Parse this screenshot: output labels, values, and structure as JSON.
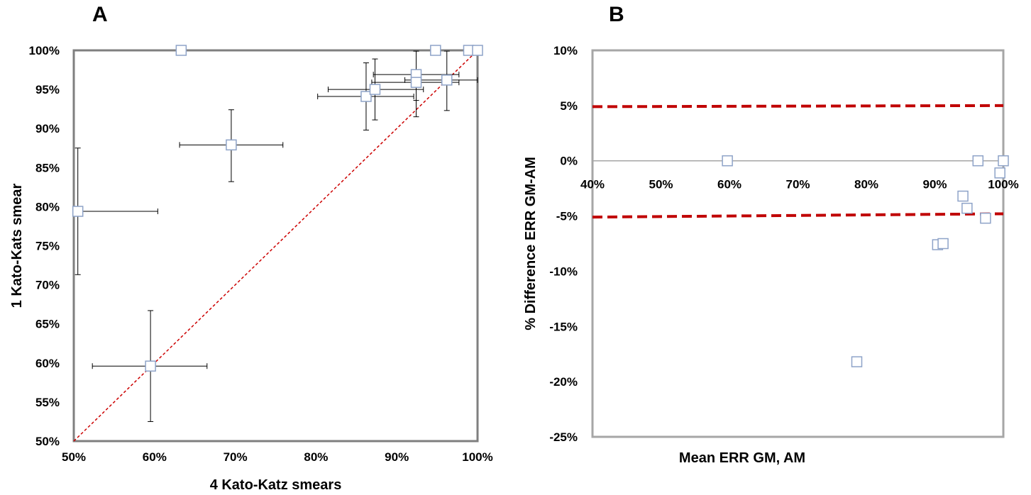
{
  "figure": {
    "panel_a_letter": "A",
    "panel_b_letter": "B"
  },
  "chart_data": [
    {
      "type": "scatter",
      "panel": "A",
      "xlabel": "4 Kato-Katz smears",
      "ylabel": "1 Kato-Kats smear",
      "xlim": [
        50,
        100
      ],
      "ylim": [
        50,
        100
      ],
      "x_ticks": [
        50,
        60,
        70,
        80,
        90,
        100
      ],
      "x_tick_labels": [
        "50%",
        "60%",
        "70%",
        "80%",
        "90%",
        "100%"
      ],
      "y_ticks": [
        50,
        55,
        60,
        65,
        70,
        75,
        80,
        85,
        90,
        95,
        100
      ],
      "y_tick_labels": [
        "50%",
        "55%",
        "60%",
        "65%",
        "70%",
        "75%",
        "80%",
        "85%",
        "90%",
        "95%",
        "100%"
      ],
      "grid": false,
      "reference_line": {
        "from": [
          50,
          50
        ],
        "to": [
          100,
          100
        ],
        "style": "dashed",
        "color": "#cc0000"
      },
      "marker_color": "#8ea3c8",
      "points": [
        {
          "x": 59.5,
          "y": 59.6,
          "xerr": [
            52.3,
            66.5
          ],
          "yerr": [
            52.5,
            66.7
          ]
        },
        {
          "x": 50.5,
          "y": 79.4,
          "xerr": [
            50.0,
            60.4
          ],
          "yerr": [
            71.3,
            87.5
          ]
        },
        {
          "x": 69.5,
          "y": 87.9,
          "xerr": [
            63.1,
            75.9
          ],
          "yerr": [
            83.2,
            92.4
          ]
        },
        {
          "x": 63.3,
          "y": 100
        },
        {
          "x": 86.2,
          "y": 94.1,
          "xerr": [
            80.2,
            92.1
          ],
          "yerr": [
            89.8,
            98.4
          ]
        },
        {
          "x": 87.3,
          "y": 95.0,
          "xerr": [
            81.5,
            93.3
          ],
          "yerr": [
            91.1,
            98.9
          ]
        },
        {
          "x": 92.4,
          "y": 96.9,
          "xerr": [
            87.1,
            97.7
          ],
          "yerr": [
            93.6,
            99.9
          ]
        },
        {
          "x": 92.4,
          "y": 95.9,
          "xerr": [
            86.9,
            97.7
          ],
          "yerr": [
            91.5,
            99.9
          ]
        },
        {
          "x": 96.2,
          "y": 96.2,
          "xerr": [
            91.0,
            100
          ],
          "yerr": [
            92.3,
            99.9
          ]
        },
        {
          "x": 94.8,
          "y": 100
        },
        {
          "x": 98.9,
          "y": 100
        },
        {
          "x": 100,
          "y": 100
        }
      ]
    },
    {
      "type": "scatter",
      "panel": "B",
      "xlabel": "Mean ERR GM, AM",
      "ylabel": "% Difference ERR GM-AM",
      "xlim": [
        40,
        100
      ],
      "ylim": [
        -25,
        10
      ],
      "x_ticks": [
        40,
        50,
        60,
        70,
        80,
        90,
        100
      ],
      "x_tick_labels": [
        "40%",
        "50%",
        "60%",
        "70%",
        "80%",
        "90%",
        "100%"
      ],
      "y_ticks": [
        10,
        5,
        0,
        -5,
        -10,
        -15,
        -20,
        -25
      ],
      "y_tick_labels": [
        "10%",
        "5%",
        "0%",
        "-5%",
        "-10%",
        "-15%",
        "-20%",
        "-25%"
      ],
      "grid": false,
      "limit_lines": [
        {
          "from": [
            40,
            4.9
          ],
          "to": [
            100,
            5.0
          ],
          "style": "dashed",
          "color": "#c00000"
        },
        {
          "from": [
            40,
            -5.1
          ],
          "to": [
            100,
            -4.8
          ],
          "style": "dashed",
          "color": "#c00000"
        }
      ],
      "marker_color": "#8ea3c8",
      "points": [
        {
          "x": 59.7,
          "y": 0
        },
        {
          "x": 78.6,
          "y": -18.2
        },
        {
          "x": 90.4,
          "y": -7.6
        },
        {
          "x": 91.2,
          "y": -7.5
        },
        {
          "x": 94.1,
          "y": -3.2
        },
        {
          "x": 94.7,
          "y": -4.3
        },
        {
          "x": 96.3,
          "y": 0
        },
        {
          "x": 97.4,
          "y": -5.2
        },
        {
          "x": 99.5,
          "y": -1.1
        },
        {
          "x": 100,
          "y": 0
        }
      ]
    }
  ]
}
